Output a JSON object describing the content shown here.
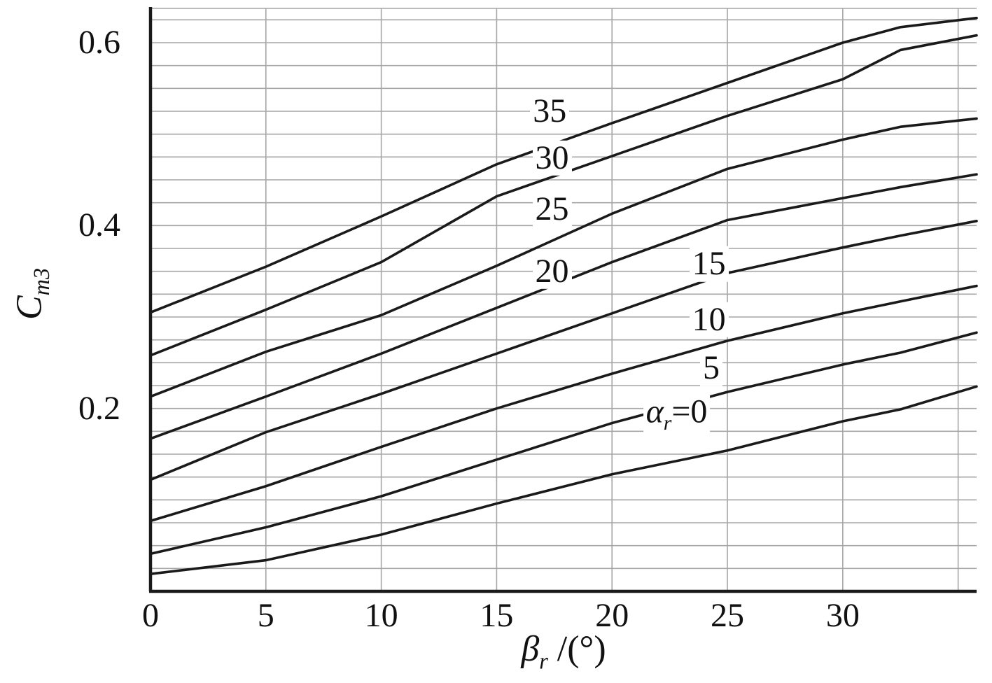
{
  "figure": {
    "background": "#ffffff",
    "grid_color": "#a6a6a6",
    "axis_color": "#1a1a1a",
    "curve_color": "#1a1a1a"
  },
  "chart_data": {
    "type": "line",
    "title": "",
    "xlabel": {
      "italic": "β",
      "sub": "r",
      "suffix": " /(°)"
    },
    "ylabel": {
      "italic": "C",
      "sub": "m3"
    },
    "xlim": [
      0,
      35.8
    ],
    "ylim": [
      0,
      0.6375
    ],
    "grid": {
      "x_step": 5,
      "y_step": 0.025,
      "on": true
    },
    "legend_position": "labels-on-curves",
    "xticks": [
      0,
      5,
      10,
      15,
      20,
      25,
      30
    ],
    "xtick_labels": [
      "0",
      "5",
      "10",
      "15",
      "20",
      "25",
      "30"
    ],
    "yticks": [
      0.2,
      0.4,
      0.6
    ],
    "ytick_labels": [
      "0.2",
      "0.4",
      "0.6"
    ],
    "x": [
      0,
      5,
      10,
      15,
      20,
      25,
      30,
      32.5,
      35.8
    ],
    "series": [
      {
        "name": "alpha_r_35",
        "alpha_r": 35,
        "values": [
          0.305,
          0.355,
          0.41,
          0.467,
          0.512,
          0.556,
          0.6,
          0.617,
          0.627
        ],
        "label": {
          "italic": "",
          "sub": "",
          "text": "35"
        },
        "label_pos": {
          "x": 17.3,
          "y": 0.525
        }
      },
      {
        "name": "alpha_r_30",
        "alpha_r": 30,
        "values": [
          0.258,
          0.308,
          0.36,
          0.432,
          0.476,
          0.52,
          0.56,
          0.592,
          0.608
        ],
        "label": {
          "italic": "",
          "sub": "",
          "text": "30"
        },
        "label_pos": {
          "x": 17.4,
          "y": 0.474
        }
      },
      {
        "name": "alpha_r_25",
        "alpha_r": 25,
        "values": [
          0.213,
          0.262,
          0.302,
          0.356,
          0.413,
          0.462,
          0.494,
          0.508,
          0.517
        ],
        "label": {
          "italic": "",
          "sub": "",
          "text": "25"
        },
        "label_pos": {
          "x": 17.4,
          "y": 0.418
        }
      },
      {
        "name": "alpha_r_20",
        "alpha_r": 20,
        "values": [
          0.167,
          0.213,
          0.26,
          0.31,
          0.36,
          0.406,
          0.43,
          0.442,
          0.456
        ],
        "label": {
          "italic": "",
          "sub": "",
          "text": "20"
        },
        "label_pos": {
          "x": 17.4,
          "y": 0.35
        }
      },
      {
        "name": "alpha_r_15",
        "alpha_r": 15,
        "values": [
          0.122,
          0.174,
          0.216,
          0.26,
          0.304,
          0.348,
          0.376,
          0.389,
          0.405
        ],
        "label": {
          "italic": "",
          "sub": "",
          "text": "15"
        },
        "label_pos": {
          "x": 24.2,
          "y": 0.358
        }
      },
      {
        "name": "alpha_r_10",
        "alpha_r": 10,
        "values": [
          0.077,
          0.115,
          0.158,
          0.2,
          0.238,
          0.274,
          0.304,
          0.317,
          0.334
        ],
        "label": {
          "italic": "",
          "sub": "",
          "text": "10"
        },
        "label_pos": {
          "x": 24.2,
          "y": 0.297
        }
      },
      {
        "name": "alpha_r_5",
        "alpha_r": 5,
        "values": [
          0.041,
          0.07,
          0.104,
          0.144,
          0.184,
          0.218,
          0.248,
          0.261,
          0.283
        ],
        "label": {
          "italic": "",
          "sub": "",
          "text": "5"
        },
        "label_pos": {
          "x": 24.3,
          "y": 0.244
        }
      },
      {
        "name": "alpha_r_0",
        "alpha_r": 0,
        "values": [
          0.019,
          0.034,
          0.062,
          0.096,
          0.128,
          0.154,
          0.186,
          0.199,
          0.224
        ],
        "label": {
          "italic": "α",
          "sub": "r",
          "text": "=0"
        },
        "label_pos": {
          "x": 22.8,
          "y": 0.194
        }
      }
    ]
  }
}
